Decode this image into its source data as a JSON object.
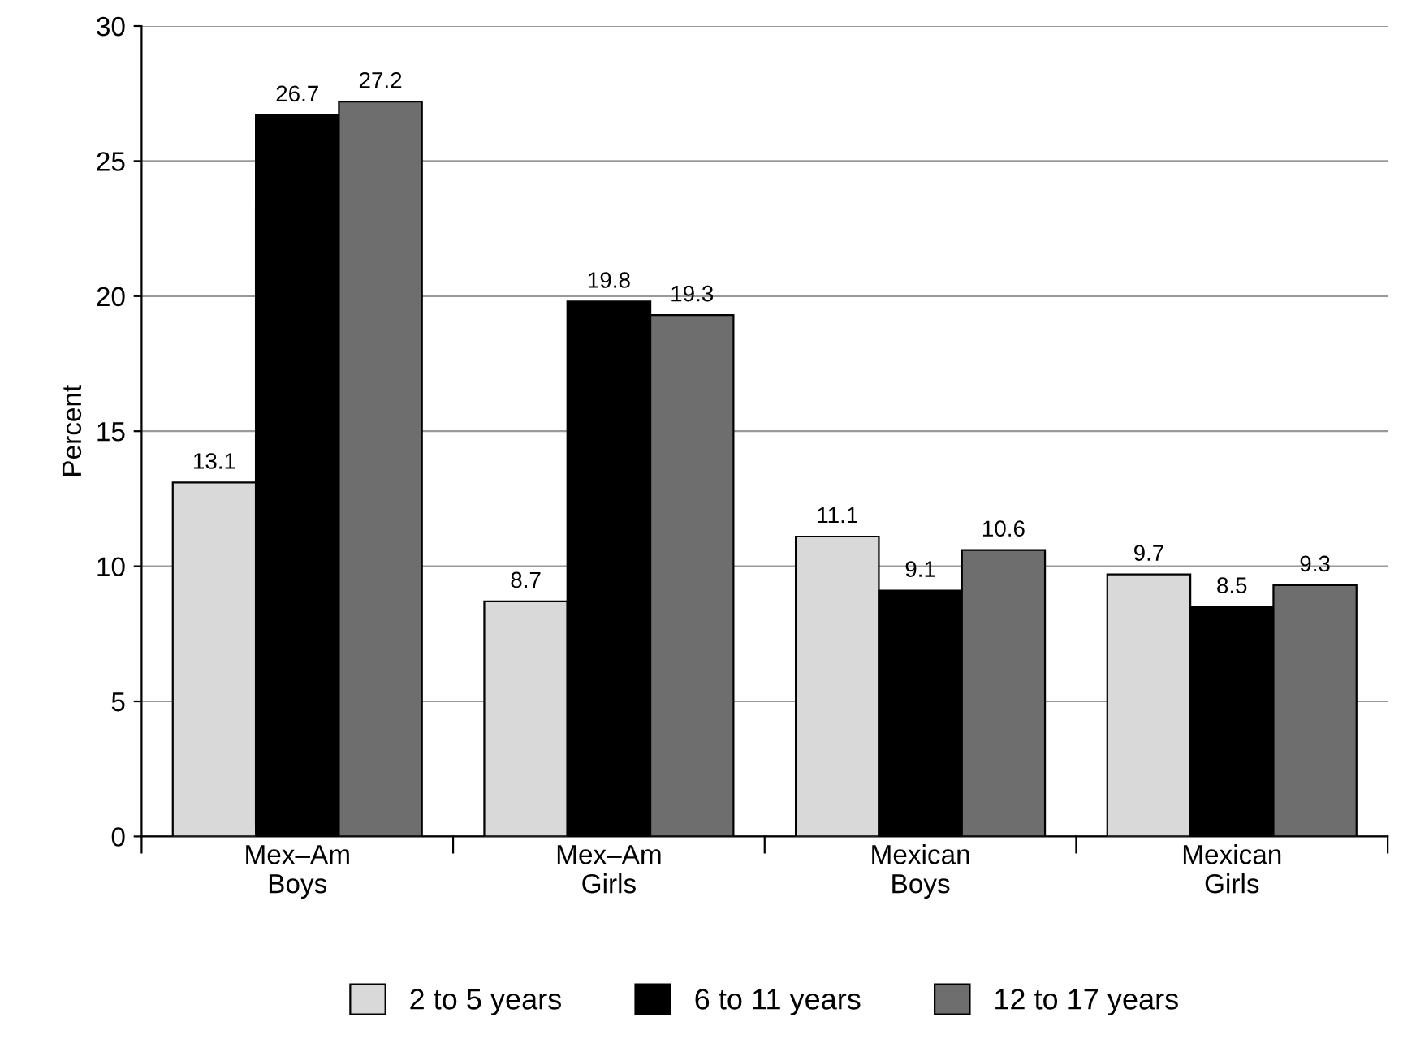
{
  "chart_data": {
    "type": "bar",
    "ylabel": "Percent",
    "categories": [
      "Mex–Am\nBoys",
      "Mex–Am\nGirls",
      "Mexican\nBoys",
      "Mexican\nGirls"
    ],
    "series": [
      {
        "name": "2 to 5 years",
        "color": "#d9d9d9",
        "values": [
          13.1,
          8.7,
          11.1,
          9.7
        ]
      },
      {
        "name": "6 to 11 years",
        "color": "#000000",
        "values": [
          26.7,
          19.8,
          9.1,
          8.5
        ]
      },
      {
        "name": "12 to 17 years",
        "color": "#6e6e6e",
        "values": [
          27.2,
          19.3,
          10.6,
          9.3
        ]
      }
    ],
    "ylim": [
      0,
      30
    ],
    "yticks": [
      0,
      5,
      10,
      15,
      20,
      25,
      30
    ],
    "grid": "y",
    "legend": "bottom",
    "data_labels": true
  }
}
